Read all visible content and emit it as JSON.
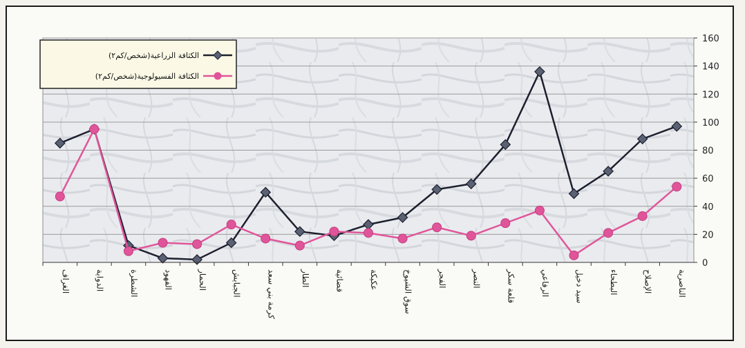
{
  "chart_data": {
    "type": "line",
    "categories": [
      "الغراف",
      "الدواية",
      "الشطرة",
      "الفهود",
      "الحمار",
      "الجبايش",
      "كرمة بني سعد",
      "الطار",
      "قضائية",
      "عكيكة",
      "سوق الشيوخ",
      "الفجر",
      "النصر",
      "قلعة سكر",
      "الرفاعي",
      "سيد دخيل",
      "البطحاء",
      "الإصلاح",
      "الناصرية"
    ],
    "series": [
      {
        "name": "الكثافة الزراعية(شخص/كم٢)",
        "color": "#1c1f2e",
        "marker": "diamond",
        "values": [
          85,
          95,
          12,
          3,
          2,
          14,
          50,
          22,
          19,
          27,
          32,
          52,
          56,
          84,
          136,
          49,
          65,
          88,
          97
        ]
      },
      {
        "name": "الكثافة الفسيولوجية(شخص/كم٢)",
        "color": "#e0559a",
        "marker": "circle",
        "values": [
          47,
          95,
          8,
          14,
          13,
          27,
          17,
          12,
          22,
          21,
          17,
          25,
          19,
          28,
          37,
          5,
          21,
          33,
          54
        ]
      }
    ],
    "yticks": [
      "0",
      "20",
      "40",
      "60",
      "80",
      "100",
      "120",
      "140",
      "160"
    ],
    "ylim": [
      0,
      160
    ],
    "y_axis_position": "right",
    "grid": true,
    "legend_position": "top-left",
    "title": "",
    "xlabel": "",
    "ylabel": ""
  }
}
